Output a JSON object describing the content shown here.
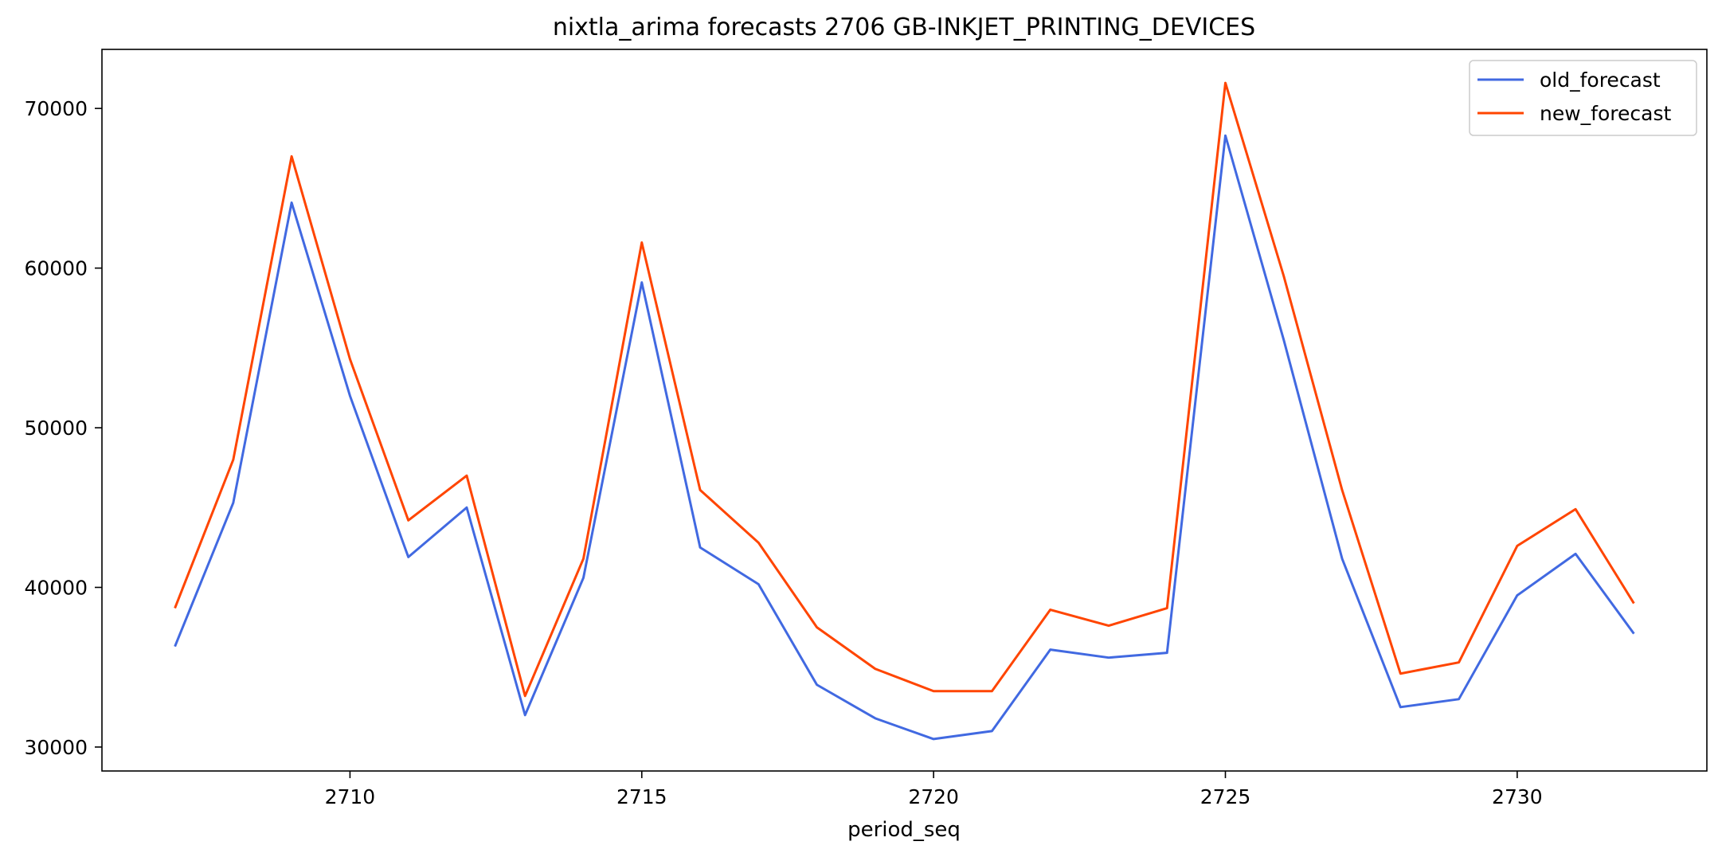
{
  "chart_data": {
    "type": "line",
    "title": "nixtla_arima forecasts 2706 GB-INKJET_PRINTING_DEVICES",
    "xlabel": "period_seq",
    "ylabel": "",
    "x": [
      2707,
      2708,
      2709,
      2710,
      2711,
      2712,
      2713,
      2714,
      2715,
      2716,
      2717,
      2718,
      2719,
      2720,
      2721,
      2722,
      2723,
      2724,
      2725,
      2726,
      2727,
      2728,
      2729,
      2730,
      2731,
      2732
    ],
    "series": [
      {
        "name": "old_forecast",
        "color": "#4169e1",
        "values": [
          36300,
          45300,
          64100,
          52000,
          41900,
          45000,
          32000,
          40600,
          59100,
          42500,
          40200,
          33900,
          31800,
          30500,
          31000,
          36100,
          35600,
          35900,
          68300,
          55500,
          41800,
          32500,
          33000,
          39500,
          42100,
          37100
        ]
      },
      {
        "name": "new_forecast",
        "color": "#ff4500",
        "values": [
          38700,
          48000,
          67000,
          54300,
          44200,
          47000,
          33200,
          41800,
          61600,
          46100,
          42800,
          37500,
          34900,
          33500,
          33500,
          38600,
          37600,
          38700,
          71600,
          59500,
          46100,
          34600,
          35300,
          42600,
          44900,
          39000
        ]
      }
    ],
    "xticks": [
      "2710",
      "2715",
      "2720",
      "2725",
      "2730"
    ],
    "yticks": [
      "30000",
      "40000",
      "50000",
      "60000",
      "70000"
    ],
    "xlim": [
      2705.75,
      2733.25
    ],
    "ylim": [
      28500,
      73700
    ],
    "grid": false,
    "legend_position": "top-right"
  }
}
